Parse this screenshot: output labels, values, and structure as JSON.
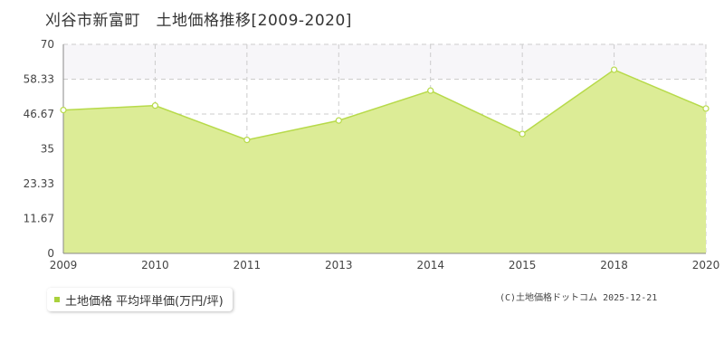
{
  "title": "刈谷市新富町　土地価格推移[2009-2020]",
  "legend_label": "土地価格 平均坪単価(万円/坪)",
  "copyright": "(C)土地価格ドットコム 2025-12-21",
  "colors": {
    "area_fill": "#dcec96",
    "line": "#b7da4a",
    "band_fill": "#f7f6f9",
    "grid": "#cccccc",
    "legend_marker": "#a9d13c",
    "point_fill": "#ffffff"
  },
  "chart_data": {
    "type": "area",
    "x": [
      "2009",
      "2010",
      "2011",
      "2013",
      "2014",
      "2015",
      "2018",
      "2020"
    ],
    "series": [
      {
        "values": [
          48,
          49.5,
          38,
          44.5,
          54.5,
          40,
          61.5,
          48.5
        ]
      }
    ],
    "ylim": [
      0,
      70
    ],
    "yticks": [
      "0",
      "11.67",
      "23.33",
      "35",
      "46.67",
      "58.33",
      "70"
    ],
    "grid": true,
    "legend_position": "bottom-left"
  }
}
